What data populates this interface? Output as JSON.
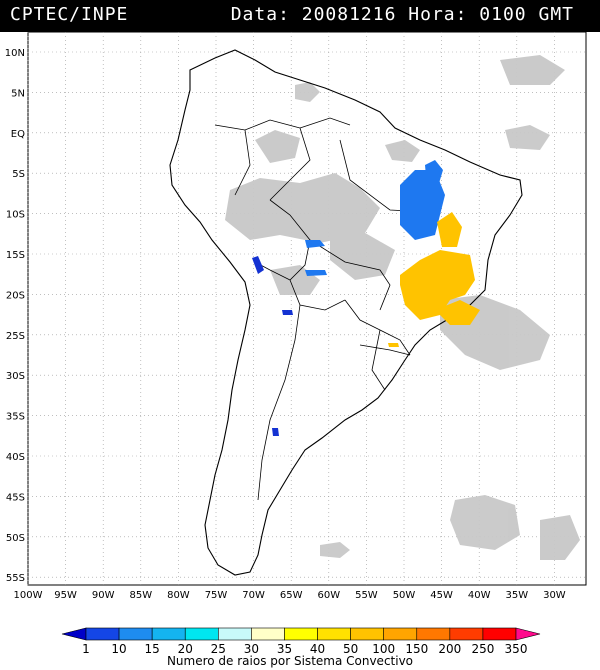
{
  "header": {
    "org": "CPTEC/INPE",
    "stamp": "Data: 20081216 Hora: 0100 GMT"
  },
  "map": {
    "lat_labels": [
      "10N",
      "5N",
      "EQ",
      "5S",
      "10S",
      "15S",
      "20S",
      "25S",
      "30S",
      "35S",
      "40S",
      "45S",
      "50S",
      "55S"
    ],
    "lon_labels": [
      "100W",
      "95W",
      "90W",
      "85W",
      "80W",
      "75W",
      "70W",
      "65W",
      "60W",
      "55W",
      "50W",
      "45W",
      "40W",
      "35W",
      "30W"
    ],
    "colors": {
      "background": "#ffffff",
      "grid": "#888888",
      "border": "#000000",
      "cloud": "#c4c4c4",
      "blue": "#1e78f0",
      "darkblue": "#1432d2",
      "orange": "#ffc300"
    }
  },
  "legend": {
    "title": "Numero de raios por Sistema Convectivo",
    "ticks": [
      "1",
      "10",
      "15",
      "20",
      "25",
      "30",
      "35",
      "40",
      "50",
      "100",
      "150",
      "200",
      "250",
      "350"
    ],
    "colors": [
      "#0000c8",
      "#1446e6",
      "#1e8cf0",
      "#14b4f0",
      "#00e6f0",
      "#c8fafa",
      "#ffffc8",
      "#ffff00",
      "#ffe100",
      "#ffc300",
      "#ffa500",
      "#ff7800",
      "#ff3c00",
      "#ff0000",
      "#ff0a8c"
    ]
  }
}
